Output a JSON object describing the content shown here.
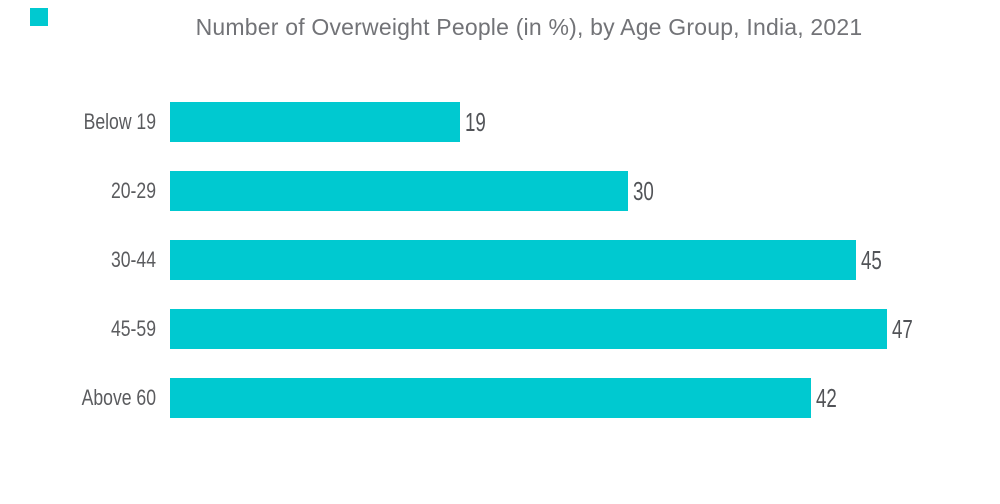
{
  "brand": {
    "accent_color": "#00C9D0"
  },
  "chart_data": {
    "type": "bar",
    "orientation": "horizontal",
    "title": "Number of Overweight People (in %), by Age Group, India, 2021",
    "categories": [
      "Below 19",
      "20-29",
      "30-44",
      "45-59",
      "Above 60"
    ],
    "values": [
      19,
      30,
      45,
      47,
      42
    ],
    "value_labels": [
      "19",
      "30",
      "45",
      "47",
      "42"
    ],
    "xlabel": "",
    "ylabel": "",
    "xlim": [
      0,
      51.8
    ],
    "grid": false,
    "legend": false,
    "bar_color": "#00C9D0",
    "title_color": "#727377",
    "label_color": "#5A5B5E",
    "value_color": "#515357",
    "background_color": "#FFFFFF"
  }
}
